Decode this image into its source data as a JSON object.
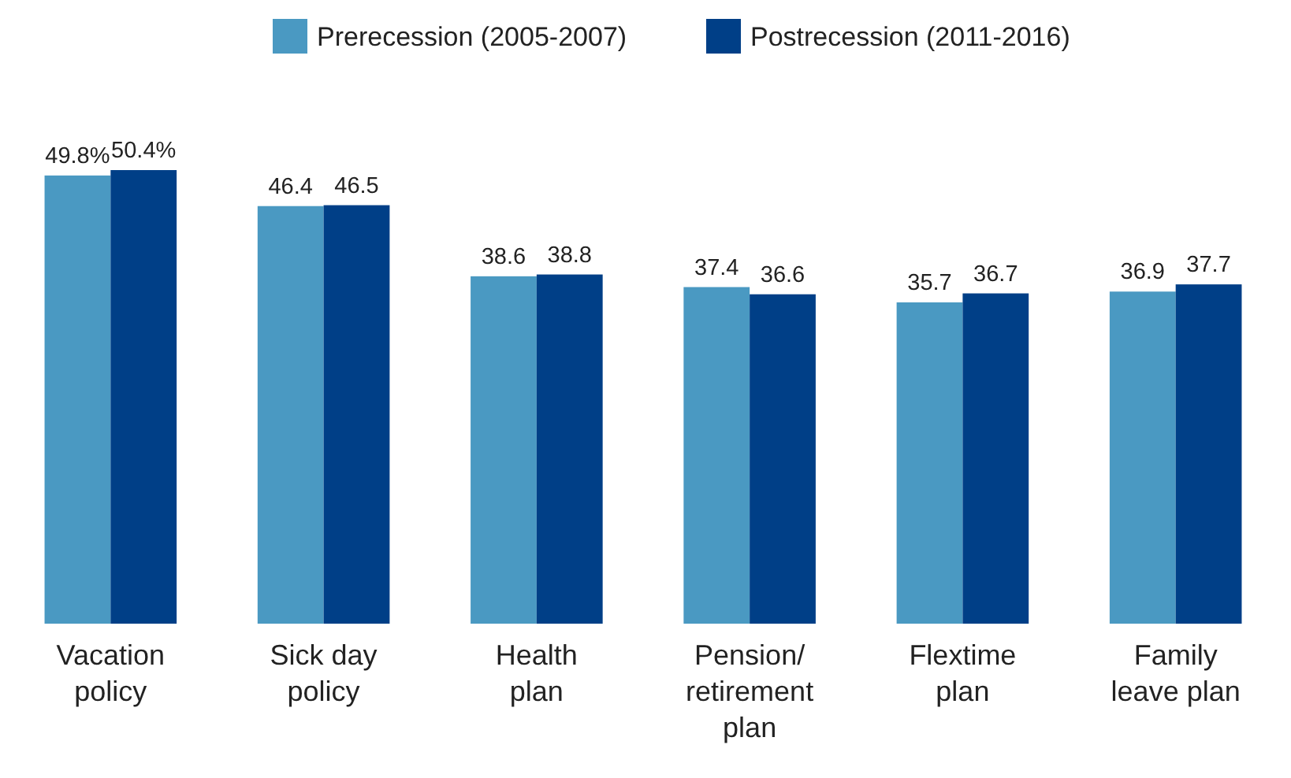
{
  "chart_data": {
    "type": "bar",
    "categories": [
      "Vacation policy",
      "Sick day policy",
      "Health plan",
      "Pension/ retirement plan",
      "Flextime plan",
      "Family leave plan"
    ],
    "series": [
      {
        "name": "Prerecession (2005-2007)",
        "color": "#4a99c2",
        "values": [
          49.8,
          46.4,
          38.6,
          37.4,
          35.7,
          36.9
        ],
        "value_labels": [
          "49.8%",
          "46.4",
          "38.6",
          "37.4",
          "35.7",
          "36.9"
        ]
      },
      {
        "name": "Postrecession (2011-2016)",
        "color": "#003f87",
        "values": [
          50.4,
          46.5,
          38.8,
          36.6,
          36.7,
          37.7
        ],
        "value_labels": [
          "50.4%",
          "46.5",
          "38.8",
          "36.6",
          "36.7",
          "37.7"
        ]
      }
    ],
    "tick_labels": "x",
    "legend": "top"
  }
}
